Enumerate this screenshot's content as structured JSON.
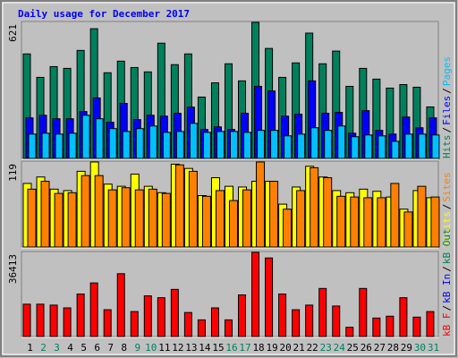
{
  "legend_separator": "/",
  "chart_data": [
    {
      "type": "bar",
      "title": "Daily usage for December 2017",
      "categories": [
        "1",
        "2",
        "3",
        "4",
        "5",
        "6",
        "7",
        "8",
        "9",
        "10",
        "11",
        "12",
        "13",
        "14",
        "15",
        "16",
        "17",
        "18",
        "19",
        "20",
        "21",
        "22",
        "23",
        "24",
        "25",
        "26",
        "27",
        "28",
        "29",
        "30",
        "31"
      ],
      "category_colors": [
        "#000000",
        "#00805c",
        "#00805c",
        "#000000",
        "#000000",
        "#000000",
        "#000000",
        "#000000",
        "#00805c",
        "#00805c",
        "#000000",
        "#000000",
        "#000000",
        "#000000",
        "#000000",
        "#00805c",
        "#00805c",
        "#000000",
        "#000000",
        "#000000",
        "#000000",
        "#000000",
        "#00805c",
        "#00805c",
        "#000000",
        "#000000",
        "#000000",
        "#000000",
        "#000000",
        "#00805c",
        "#00805c"
      ],
      "ylim": [
        0,
        621
      ],
      "series": [
        {
          "name": "Hits",
          "color": "#00805c",
          "values": [
            477,
            370,
            419,
            411,
            493,
            592,
            391,
            444,
            415,
            395,
            526,
            428,
            477,
            280,
            345,
            432,
            354,
            621,
            502,
            370,
            436,
            572,
            432,
            490,
            329,
            411,
            362,
            321,
            337,
            325,
            235
          ]
        },
        {
          "name": "Files",
          "color": "#0000ff",
          "values": [
            185,
            197,
            181,
            181,
            214,
            276,
            165,
            251,
            177,
            197,
            193,
            206,
            234,
            132,
            144,
            132,
            206,
            329,
            308,
            193,
            202,
            354,
            206,
            210,
            115,
            218,
            128,
            111,
            189,
            140,
            185
          ]
        },
        {
          "name": "Pages",
          "color": "#00c0ff",
          "values": [
            111,
            115,
            111,
            115,
            197,
            181,
            136,
            123,
            136,
            148,
            119,
            123,
            160,
            119,
            123,
            123,
            119,
            128,
            128,
            103,
            111,
            140,
            128,
            148,
            99,
            107,
            103,
            78,
            111,
            111,
            107
          ]
        }
      ]
    },
    {
      "type": "bar",
      "ylim": [
        0,
        119
      ],
      "series": [
        {
          "name": "Visits",
          "color": "#ffff00",
          "values": [
            89,
            98,
            81,
            79,
            106,
            119,
            88,
            85,
            102,
            85,
            76,
            116,
            110,
            72,
            97,
            85,
            84,
            92,
            92,
            60,
            84,
            113,
            98,
            79,
            76,
            81,
            78,
            70,
            53,
            79,
            69
          ]
        },
        {
          "name": "Sites",
          "color": "#ff8000",
          "values": [
            81,
            92,
            75,
            76,
            100,
            100,
            80,
            83,
            80,
            81,
            75,
            115,
            106,
            71,
            79,
            65,
            80,
            119,
            92,
            53,
            79,
            111,
            97,
            71,
            70,
            69,
            69,
            89,
            49,
            85,
            70
          ]
        }
      ]
    },
    {
      "type": "bar",
      "ylim": [
        0,
        36413
      ],
      "series": [
        {
          "name": "kB F",
          "color": "#ff0000",
          "values": [
            14000,
            14000,
            13600,
            12400,
            18400,
            23200,
            11600,
            27200,
            10800,
            17600,
            16800,
            20400,
            10400,
            7200,
            12400,
            7200,
            18000,
            36413,
            34000,
            18400,
            11600,
            13600,
            20800,
            13200,
            4000,
            20800,
            8000,
            8800,
            16800,
            8400,
            10800
          ]
        },
        {
          "name": "kB In",
          "color": "#0000ff",
          "values": [
            0,
            0,
            0,
            0,
            0,
            0,
            0,
            0,
            0,
            0,
            0,
            0,
            0,
            0,
            0,
            0,
            0,
            0,
            0,
            0,
            0,
            0,
            0,
            0,
            0,
            0,
            0,
            0,
            0,
            0,
            0
          ]
        },
        {
          "name": "kB Out",
          "color": "#00805c",
          "values": [
            0,
            0,
            0,
            0,
            0,
            0,
            0,
            0,
            0,
            0,
            0,
            0,
            0,
            0,
            0,
            0,
            0,
            0,
            0,
            0,
            0,
            0,
            0,
            0,
            0,
            0,
            0,
            0,
            0,
            0,
            0
          ]
        }
      ]
    }
  ]
}
